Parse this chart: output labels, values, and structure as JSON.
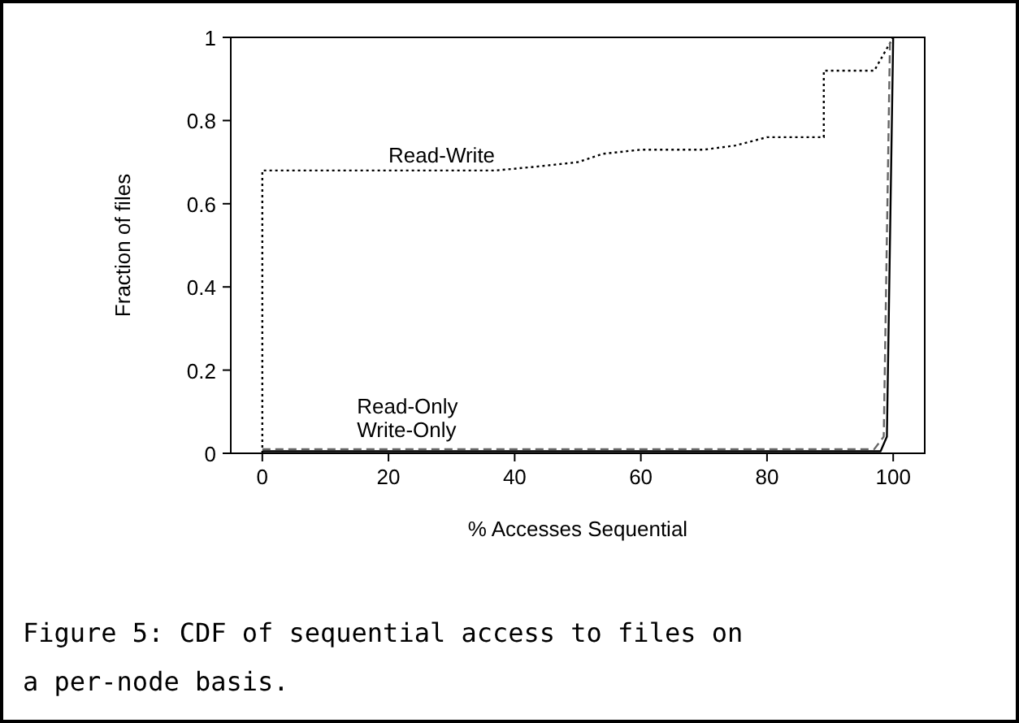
{
  "chart_data": {
    "type": "line",
    "xlabel": "% Accesses Sequential",
    "ylabel": "Fraction of files",
    "xlim": [
      -5,
      105
    ],
    "ylim": [
      0,
      1
    ],
    "xticks": [
      0,
      20,
      40,
      60,
      80,
      100
    ],
    "yticks": [
      0,
      {
        "value": 0.2,
        "label": "0.2"
      },
      {
        "value": 0.4,
        "label": "0.4"
      },
      {
        "value": 0.6,
        "label": "0.6"
      },
      {
        "value": 0.8,
        "label": "0.8"
      },
      1
    ],
    "grid": false,
    "legend": false,
    "series": [
      {
        "name": "Read-Write",
        "color": "#000000",
        "line_style": "dotted",
        "x": [
          0,
          0,
          37,
          44,
          50,
          54,
          60,
          70,
          75,
          80,
          89,
          89,
          97,
          100
        ],
        "values": [
          0,
          0.68,
          0.68,
          0.69,
          0.7,
          0.72,
          0.73,
          0.73,
          0.74,
          0.76,
          0.76,
          0.92,
          0.92,
          1
        ]
      },
      {
        "name": "Read-Only",
        "color": "#000000",
        "line_style": "solid",
        "x": [
          0,
          98,
          99,
          100
        ],
        "values": [
          0.005,
          0.005,
          0.04,
          1
        ]
      },
      {
        "name": "Write-Only",
        "color": "#666666",
        "line_style": "dashed",
        "x": [
          0,
          97,
          98.5,
          99.5
        ],
        "values": [
          0.01,
          0.01,
          0.04,
          1
        ]
      }
    ],
    "annotations": [
      "Figure 5: CDF of sequential access to files on a per-node basis."
    ]
  }
}
